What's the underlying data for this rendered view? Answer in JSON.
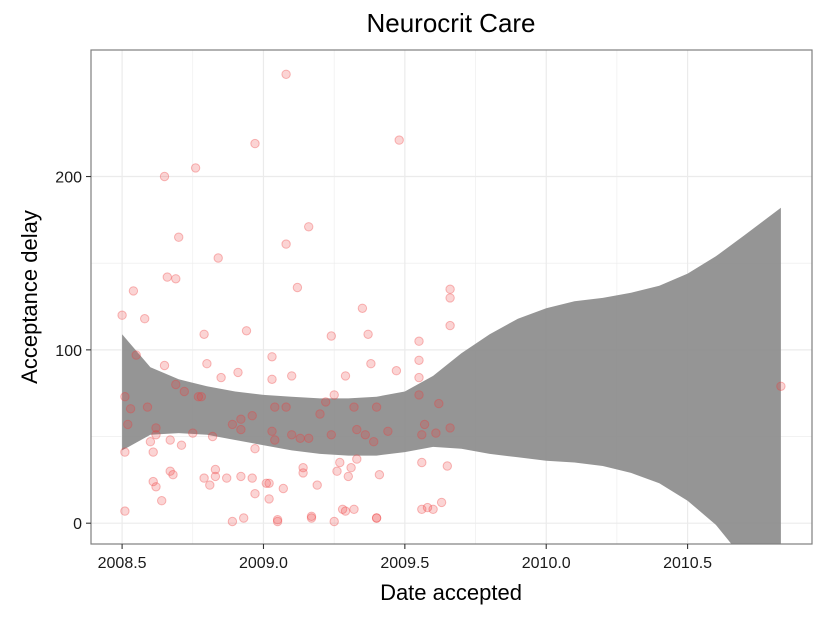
{
  "chart_data": {
    "type": "scatter",
    "title": "Neurocrit Care",
    "xlabel": "Date accepted",
    "ylabel": "Acceptance delay",
    "xlim": [
      2008.39,
      2010.94
    ],
    "ylim": [
      -12,
      273
    ],
    "xticks": [
      2008.5,
      2009.0,
      2009.5,
      2010.0,
      2010.5
    ],
    "xtick_labels": [
      "2008.5",
      "2009.0",
      "2009.5",
      "2010.0",
      "2010.5"
    ],
    "yticks": [
      0,
      100,
      200
    ],
    "ytick_labels": [
      "0",
      "100",
      "200"
    ],
    "grid": true,
    "colors": {
      "points": "#ee3b3b",
      "band": "#8c8c8c",
      "grid": "#ebebeb",
      "border": "#7f7f7f"
    },
    "points": [
      [
        2008.5,
        120
      ],
      [
        2008.51,
        41
      ],
      [
        2008.51,
        7
      ],
      [
        2008.51,
        73
      ],
      [
        2008.52,
        57
      ],
      [
        2008.53,
        66
      ],
      [
        2008.54,
        134
      ],
      [
        2008.55,
        97
      ],
      [
        2008.58,
        118
      ],
      [
        2008.59,
        67
      ],
      [
        2008.6,
        47
      ],
      [
        2008.61,
        41
      ],
      [
        2008.61,
        24
      ],
      [
        2008.62,
        55
      ],
      [
        2008.62,
        51
      ],
      [
        2008.62,
        21
      ],
      [
        2008.64,
        13
      ],
      [
        2008.65,
        200
      ],
      [
        2008.65,
        91
      ],
      [
        2008.66,
        142
      ],
      [
        2008.67,
        48
      ],
      [
        2008.67,
        30
      ],
      [
        2008.68,
        28
      ],
      [
        2008.69,
        141
      ],
      [
        2008.69,
        80
      ],
      [
        2008.7,
        165
      ],
      [
        2008.71,
        45
      ],
      [
        2008.72,
        76
      ],
      [
        2008.75,
        52
      ],
      [
        2008.76,
        205
      ],
      [
        2008.77,
        73
      ],
      [
        2008.78,
        73
      ],
      [
        2008.79,
        109
      ],
      [
        2008.79,
        26
      ],
      [
        2008.8,
        92
      ],
      [
        2008.81,
        22
      ],
      [
        2008.82,
        50
      ],
      [
        2008.83,
        31
      ],
      [
        2008.83,
        27
      ],
      [
        2008.84,
        153
      ],
      [
        2008.85,
        84
      ],
      [
        2008.87,
        26
      ],
      [
        2008.89,
        1
      ],
      [
        2008.89,
        57
      ],
      [
        2008.91,
        87
      ],
      [
        2008.92,
        60
      ],
      [
        2008.92,
        54
      ],
      [
        2008.92,
        27
      ],
      [
        2008.93,
        3
      ],
      [
        2008.94,
        111
      ],
      [
        2008.96,
        62
      ],
      [
        2008.96,
        26
      ],
      [
        2008.97,
        219
      ],
      [
        2008.97,
        43
      ],
      [
        2008.97,
        17
      ],
      [
        2009.01,
        23
      ],
      [
        2009.02,
        14
      ],
      [
        2009.02,
        23
      ],
      [
        2009.03,
        83
      ],
      [
        2009.03,
        53
      ],
      [
        2009.03,
        96
      ],
      [
        2009.04,
        67
      ],
      [
        2009.04,
        48
      ],
      [
        2009.05,
        2
      ],
      [
        2009.05,
        1
      ],
      [
        2009.07,
        20
      ],
      [
        2009.08,
        161
      ],
      [
        2009.08,
        67
      ],
      [
        2009.08,
        259
      ],
      [
        2009.1,
        85
      ],
      [
        2009.1,
        51
      ],
      [
        2009.12,
        136
      ],
      [
        2009.13,
        49
      ],
      [
        2009.14,
        32
      ],
      [
        2009.14,
        29
      ],
      [
        2009.16,
        49
      ],
      [
        2009.16,
        171
      ],
      [
        2009.17,
        4
      ],
      [
        2009.17,
        3
      ],
      [
        2009.19,
        22
      ],
      [
        2009.2,
        63
      ],
      [
        2009.22,
        70
      ],
      [
        2009.24,
        51
      ],
      [
        2009.24,
        108
      ],
      [
        2009.25,
        74
      ],
      [
        2009.25,
        1
      ],
      [
        2009.26,
        30
      ],
      [
        2009.27,
        35
      ],
      [
        2009.28,
        8
      ],
      [
        2009.29,
        85
      ],
      [
        2009.29,
        7
      ],
      [
        2009.3,
        27
      ],
      [
        2009.31,
        32
      ],
      [
        2009.32,
        67
      ],
      [
        2009.32,
        8
      ],
      [
        2009.33,
        54
      ],
      [
        2009.33,
        37
      ],
      [
        2009.35,
        124
      ],
      [
        2009.36,
        51
      ],
      [
        2009.37,
        109
      ],
      [
        2009.38,
        92
      ],
      [
        2009.39,
        47
      ],
      [
        2009.4,
        67
      ],
      [
        2009.4,
        3
      ],
      [
        2009.4,
        3
      ],
      [
        2009.41,
        28
      ],
      [
        2009.44,
        53
      ],
      [
        2009.47,
        88
      ],
      [
        2009.48,
        221
      ],
      [
        2009.55,
        105
      ],
      [
        2009.55,
        94
      ],
      [
        2009.55,
        84
      ],
      [
        2009.55,
        74
      ],
      [
        2009.56,
        35
      ],
      [
        2009.56,
        51
      ],
      [
        2009.56,
        8
      ],
      [
        2009.57,
        57
      ],
      [
        2009.58,
        9
      ],
      [
        2009.6,
        8
      ],
      [
        2009.61,
        52
      ],
      [
        2009.62,
        69
      ],
      [
        2009.63,
        12
      ],
      [
        2009.65,
        33
      ],
      [
        2009.66,
        55
      ],
      [
        2009.66,
        114
      ],
      [
        2009.66,
        135
      ],
      [
        2009.66,
        130
      ],
      [
        2010.83,
        79
      ]
    ],
    "smooth_band": {
      "x": [
        2008.5,
        2008.6,
        2008.7,
        2008.8,
        2008.9,
        2009.0,
        2009.1,
        2009.2,
        2009.3,
        2009.4,
        2009.5,
        2009.6,
        2009.7,
        2009.8,
        2009.9,
        2010.0,
        2010.1,
        2010.2,
        2010.3,
        2010.4,
        2010.5,
        2010.6,
        2010.7,
        2010.83
      ],
      "upper": [
        109,
        90,
        83,
        79,
        76,
        74,
        73,
        72,
        72,
        73,
        76,
        85,
        98,
        109,
        118,
        124,
        128,
        130,
        133,
        137,
        144,
        154,
        166,
        182
      ],
      "lower": [
        42,
        51,
        52,
        51,
        48,
        45,
        42,
        40,
        39,
        39,
        41,
        44,
        43,
        40,
        38,
        36,
        35,
        33,
        29,
        23,
        13,
        -1,
        -21,
        -50
      ]
    }
  }
}
